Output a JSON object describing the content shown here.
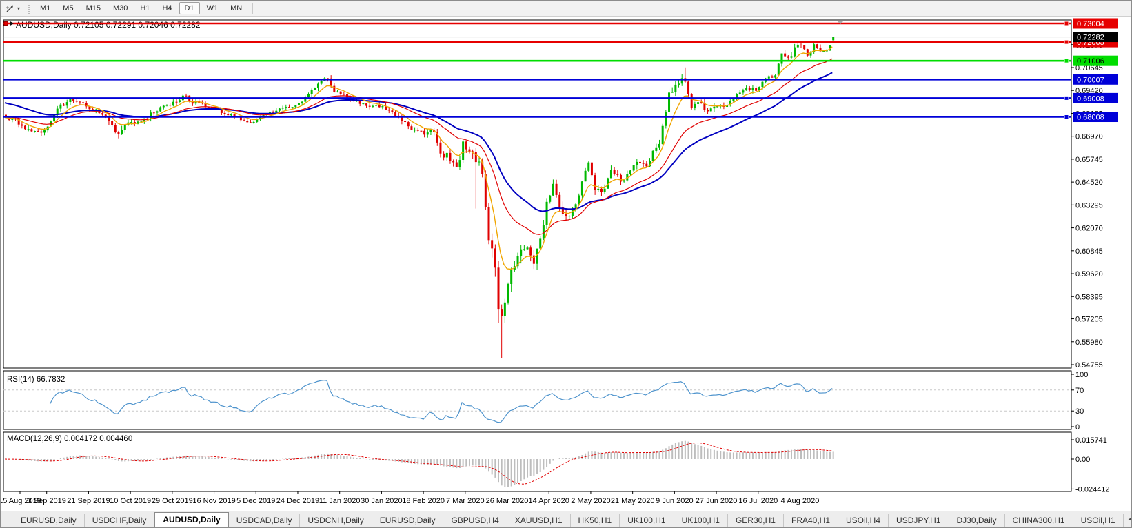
{
  "toolbar": {
    "cursor_tool": "cursor-tool",
    "timeframes": [
      "M1",
      "M5",
      "M15",
      "M30",
      "H1",
      "H4",
      "D1",
      "W1",
      "MN"
    ],
    "active_timeframe": "D1"
  },
  "chart": {
    "title_line": "AUDUSD,Daily  0.72105 0.72291 0.72046 0.72282",
    "symbol": "AUDUSD",
    "timeframe": "Daily",
    "current_price": "0.72282",
    "price_axis_ticks": [
      "0.71870",
      "0.70645",
      "0.69420",
      "0.68195",
      "0.66970",
      "0.65745",
      "0.64520",
      "0.63295",
      "0.62070",
      "0.60845",
      "0.59620",
      "0.58395",
      "0.57205",
      "0.55980",
      "0.54755"
    ],
    "levels": [
      {
        "price": 0.73004,
        "label": "0.73004",
        "color": "#e60000",
        "text_color": "#ffffff",
        "handle": true
      },
      {
        "price": 0.72005,
        "label": "0.72005",
        "color": "#e60000",
        "text_color": "#ffffff",
        "handle": true
      },
      {
        "price": 0.71006,
        "label": "0.71006",
        "color": "#00dd00",
        "text_color": "#000000",
        "handle": true
      },
      {
        "price": 0.70007,
        "label": "0.70007",
        "color": "#0000d8",
        "text_color": "#ffffff",
        "handle": false
      },
      {
        "price": 0.69008,
        "label": "0.69008",
        "color": "#0000d8",
        "text_color": "#ffffff",
        "handle": true
      },
      {
        "price": 0.68008,
        "label": "0.68008",
        "color": "#0000d8",
        "text_color": "#ffffff",
        "handle": true
      }
    ],
    "colors": {
      "bull": "#00b800",
      "bear": "#e00000",
      "ma_fast": "#f0a500",
      "ma_mid": "#e00000",
      "ma_slow": "#0000c0",
      "bid_line": "#b8b8b8",
      "rsi_line": "#4f94cd",
      "macd_hist": "#bdbdbd",
      "macd_signal": "#e00000",
      "border": "#000000",
      "badge_current_bg": "#000000"
    }
  },
  "rsi": {
    "label": "RSI(14) 66.7832",
    "value": "66.7832",
    "ticks": [
      "100",
      "70",
      "30",
      "0"
    ],
    "level_lines": [
      70,
      30
    ]
  },
  "macd": {
    "label": "MACD(12,26,9) 0.004172 0.004460",
    "main_value": "0.004172",
    "signal_value": "0.004460",
    "ticks": [
      {
        "label": "0.015741",
        "v": 0.015741
      },
      {
        "label": "0.00",
        "v": 0
      },
      {
        "label": "-0.024412",
        "v": -0.024412
      }
    ]
  },
  "x_axis": {
    "dates": [
      "15 Aug 2019",
      "3 Sep 2019",
      "21 Sep 2019",
      "10 Oct 2019",
      "29 Oct 2019",
      "16 Nov 2019",
      "5 Dec 2019",
      "24 Dec 2019",
      "11 Jan 2020",
      "30 Jan 2020",
      "18 Feb 2020",
      "7 Mar 2020",
      "26 Mar 2020",
      "14 Apr 2020",
      "2 May 2020",
      "21 May 2020",
      "9 Jun 2020",
      "27 Jun 2020",
      "16 Jul 2020",
      "4 Aug 2020"
    ]
  },
  "tabs": [
    {
      "label": "EURUSD,Daily"
    },
    {
      "label": "USDCHF,Daily"
    },
    {
      "label": "AUDUSD,Daily"
    },
    {
      "label": "USDCAD,Daily"
    },
    {
      "label": "USDCNH,Daily"
    },
    {
      "label": "EURUSD,Daily"
    },
    {
      "label": "GBPUSD,H4"
    },
    {
      "label": "XAUUSD,H1"
    },
    {
      "label": "HK50,H1"
    },
    {
      "label": "UK100,H1"
    },
    {
      "label": "UK100,H1"
    },
    {
      "label": "GER30,H1"
    },
    {
      "label": "FRA40,H1"
    },
    {
      "label": "USOil,H4"
    },
    {
      "label": "USDJPY,H1"
    },
    {
      "label": "DJ30,Daily"
    },
    {
      "label": "CHINA300,H1"
    },
    {
      "label": "USOil,H1"
    }
  ],
  "active_tab_index": 2,
  "chart_data": {
    "type": "candlestick",
    "symbol": "AUDUSD",
    "timeframe": "Daily",
    "count": 258,
    "last_candle": {
      "open": 0.72105,
      "high": 0.72291,
      "low": 0.72046,
      "close": 0.72282
    },
    "price_top": 0.73188,
    "price_bottom": 0.54571,
    "anchors": [
      [
        0,
        0.68,
        0.004
      ],
      [
        3,
        0.678,
        0.004
      ],
      [
        8,
        0.6725,
        0.005
      ],
      [
        12,
        0.672,
        0.004
      ],
      [
        16,
        0.685,
        0.004
      ],
      [
        20,
        0.6885,
        0.004
      ],
      [
        24,
        0.6865,
        0.004
      ],
      [
        28,
        0.683,
        0.004
      ],
      [
        33,
        0.6765,
        0.005
      ],
      [
        34,
        0.671,
        0.006
      ],
      [
        38,
        0.676,
        0.004
      ],
      [
        43,
        0.679,
        0.004
      ],
      [
        48,
        0.685,
        0.004
      ],
      [
        53,
        0.688,
        0.004
      ],
      [
        55,
        0.6915,
        0.004
      ],
      [
        58,
        0.688,
        0.004
      ],
      [
        63,
        0.6855,
        0.003
      ],
      [
        68,
        0.682,
        0.003
      ],
      [
        73,
        0.679,
        0.003
      ],
      [
        76,
        0.677,
        0.003
      ],
      [
        80,
        0.681,
        0.003
      ],
      [
        84,
        0.684,
        0.003
      ],
      [
        88,
        0.685,
        0.003
      ],
      [
        92,
        0.688,
        0.003
      ],
      [
        95,
        0.694,
        0.004
      ],
      [
        98,
        0.7,
        0.004
      ],
      [
        100,
        0.7,
        0.004
      ],
      [
        102,
        0.694,
        0.004
      ],
      [
        106,
        0.6905,
        0.004
      ],
      [
        110,
        0.688,
        0.004
      ],
      [
        114,
        0.686,
        0.004
      ],
      [
        118,
        0.6845,
        0.004
      ],
      [
        122,
        0.68,
        0.004
      ],
      [
        126,
        0.674,
        0.004
      ],
      [
        130,
        0.6715,
        0.004
      ],
      [
        133,
        0.673,
        0.004
      ],
      [
        135,
        0.659,
        0.006
      ],
      [
        137,
        0.66,
        0.005
      ],
      [
        140,
        0.652,
        0.008
      ],
      [
        142,
        0.665,
        0.007
      ],
      [
        144,
        0.662,
        0.007
      ],
      [
        146,
        0.658,
        0.012
      ],
      [
        148,
        0.649,
        0.01
      ],
      [
        150,
        0.619,
        0.018
      ],
      [
        151,
        0.612,
        0.016
      ],
      [
        152,
        0.599,
        0.016
      ],
      [
        153,
        0.578,
        0.016
      ],
      [
        154,
        0.5745,
        0.02
      ],
      [
        155,
        0.58,
        0.014
      ],
      [
        157,
        0.596,
        0.012
      ],
      [
        159,
        0.6065,
        0.01
      ],
      [
        162,
        0.61,
        0.009
      ],
      [
        164,
        0.6,
        0.008
      ],
      [
        166,
        0.616,
        0.008
      ],
      [
        168,
        0.633,
        0.008
      ],
      [
        170,
        0.644,
        0.007
      ],
      [
        172,
        0.632,
        0.007
      ],
      [
        175,
        0.626,
        0.006
      ],
      [
        178,
        0.639,
        0.006
      ],
      [
        181,
        0.655,
        0.006
      ],
      [
        183,
        0.642,
        0.006
      ],
      [
        186,
        0.641,
        0.005
      ],
      [
        188,
        0.653,
        0.005
      ],
      [
        191,
        0.645,
        0.005
      ],
      [
        194,
        0.652,
        0.005
      ],
      [
        197,
        0.656,
        0.005
      ],
      [
        199,
        0.6535,
        0.005
      ],
      [
        201,
        0.662,
        0.005
      ],
      [
        203,
        0.6665,
        0.005
      ],
      [
        206,
        0.692,
        0.006
      ],
      [
        208,
        0.697,
        0.006
      ],
      [
        210,
        0.701,
        0.006
      ],
      [
        211,
        0.7,
        0.007
      ],
      [
        213,
        0.686,
        0.006
      ],
      [
        215,
        0.688,
        0.005
      ],
      [
        218,
        0.6835,
        0.005
      ],
      [
        221,
        0.686,
        0.004
      ],
      [
        224,
        0.6865,
        0.004
      ],
      [
        227,
        0.692,
        0.004
      ],
      [
        230,
        0.6945,
        0.004
      ],
      [
        233,
        0.695,
        0.004
      ],
      [
        236,
        0.7005,
        0.004
      ],
      [
        239,
        0.7015,
        0.004
      ],
      [
        241,
        0.7135,
        0.005
      ],
      [
        243,
        0.7105,
        0.005
      ],
      [
        245,
        0.7165,
        0.004
      ],
      [
        247,
        0.7195,
        0.004
      ],
      [
        249,
        0.712,
        0.005
      ],
      [
        251,
        0.719,
        0.004
      ],
      [
        253,
        0.7155,
        0.004
      ],
      [
        255,
        0.7145,
        0.004
      ],
      [
        257,
        0.7228,
        0.003
      ]
    ],
    "overrides": {
      "146": {
        "low": 0.631
      },
      "154": {
        "low": 0.551
      },
      "211": {
        "high": 0.7065
      },
      "257": {
        "open": 0.72105,
        "high": 0.72291,
        "low": 0.72046,
        "close": 0.72282
      }
    }
  }
}
